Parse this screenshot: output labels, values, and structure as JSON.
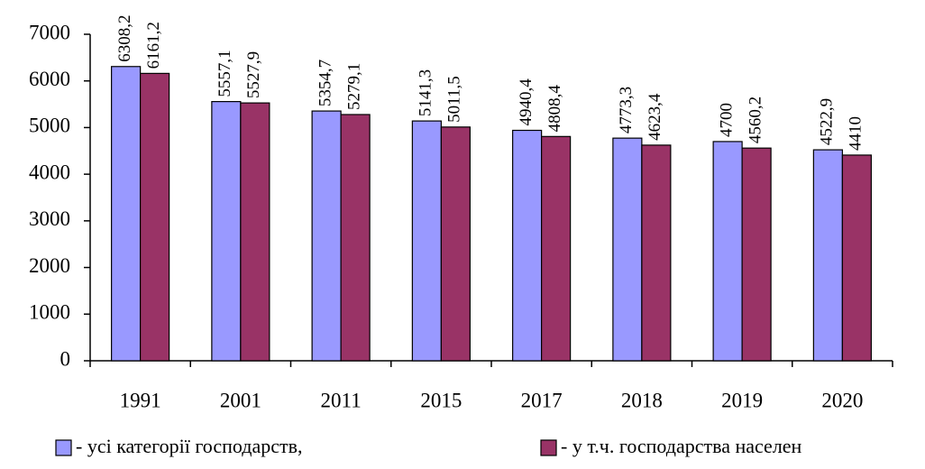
{
  "chart_data": {
    "type": "bar",
    "categories": [
      "1991",
      "2001",
      "2011",
      "2015",
      "2017",
      "2018",
      "2019",
      "2020"
    ],
    "series": [
      {
        "name": "- усі категорії господарств,",
        "color": "#9999ff",
        "values": [
          6308.2,
          5557.1,
          5354.7,
          5141.3,
          4940.4,
          4773.3,
          4700,
          4522.9
        ],
        "value_labels": [
          "6308,2",
          "5557,1",
          "5354,7",
          "5141,3",
          "4940,4",
          "4773,3",
          "4700",
          "4522,9"
        ]
      },
      {
        "name": "- у т.ч. господарства населен",
        "color": "#993366",
        "values": [
          6161.2,
          5527.9,
          5279.1,
          5011.5,
          4808.4,
          4623.4,
          4560.2,
          4410
        ],
        "value_labels": [
          "6161,2",
          "5527,9",
          "5279,1",
          "5011,5",
          "4808,4",
          "4623,4",
          "4560,2",
          "4410"
        ]
      }
    ],
    "ylim": [
      0,
      7000
    ],
    "yticks": [
      0,
      1000,
      2000,
      3000,
      4000,
      5000,
      6000,
      7000
    ],
    "grid": false,
    "legend": "bottom"
  }
}
